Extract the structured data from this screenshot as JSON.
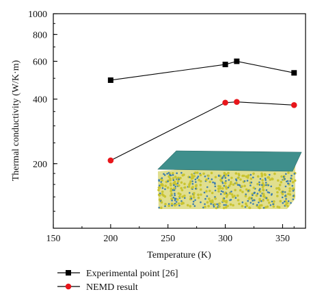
{
  "chart_data": {
    "type": "line",
    "title": "",
    "xlabel": "Temperature (K)",
    "ylabel": "Thermal conductivity (W/K·m)",
    "xlim": [
      150,
      370
    ],
    "ylim": [
      100,
      1000
    ],
    "yscale": "log",
    "x_ticks": [
      "150",
      "200",
      "250",
      "300",
      "350"
    ],
    "x_tick_values": [
      150,
      200,
      250,
      300,
      350
    ],
    "y_ticks": [
      "200",
      "400",
      "600",
      "800",
      "1000"
    ],
    "y_tick_values": [
      200,
      400,
      600,
      800,
      1000
    ],
    "grid": false,
    "legend_position": "bottom-left, below plot",
    "series": [
      {
        "name": "Experimental point [26]",
        "marker": "square",
        "color": "#000000",
        "x": [
          200,
          300,
          310,
          360
        ],
        "y": [
          490,
          580,
          600,
          530
        ]
      },
      {
        "name": "NEMD result",
        "marker": "circle",
        "color": "#e8161b",
        "x": [
          200,
          300,
          310,
          360
        ],
        "y": [
          207,
          385,
          388,
          375
        ]
      }
    ]
  },
  "colors": {
    "inset_top_layer": "#3f8f8c",
    "inset_bottom_layer": "#c9c431",
    "inset_atom_blue": "#3a7cb0"
  }
}
